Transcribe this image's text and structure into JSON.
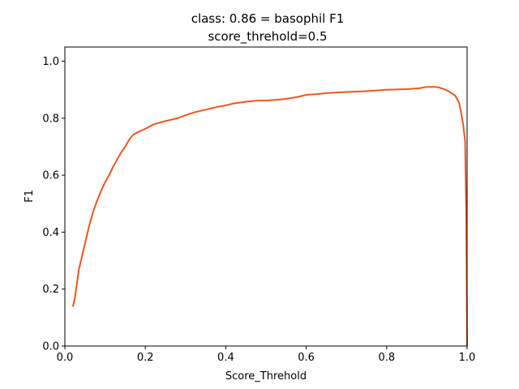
{
  "chart_data": {
    "type": "line",
    "title_line1": "class: 0.86 = basophil F1",
    "title_line2": "score_threhold=0.5",
    "xlabel": "Score_Threhold",
    "ylabel": "F1",
    "xlim": [
      0.0,
      1.0
    ],
    "ylim": [
      0.0,
      1.05
    ],
    "xticks": [
      0.0,
      0.2,
      0.4,
      0.6,
      0.8,
      1.0
    ],
    "xtick_labels": [
      "0.0",
      "0.2",
      "0.4",
      "0.6",
      "0.8",
      "1.0"
    ],
    "yticks": [
      0.0,
      0.2,
      0.4,
      0.6,
      0.8,
      1.0
    ],
    "ytick_labels": [
      "0.0",
      "0.2",
      "0.4",
      "0.6",
      "0.8",
      "1.0"
    ],
    "grid": false,
    "series": [
      {
        "color": "#f0541e",
        "x": [
          0.02,
          0.025,
          0.03,
          0.035,
          0.04,
          0.05,
          0.06,
          0.07,
          0.08,
          0.09,
          0.1,
          0.11,
          0.12,
          0.13,
          0.14,
          0.15,
          0.16,
          0.17,
          0.18,
          0.2,
          0.22,
          0.25,
          0.28,
          0.3,
          0.32,
          0.35,
          0.38,
          0.4,
          0.42,
          0.45,
          0.48,
          0.5,
          0.53,
          0.55,
          0.58,
          0.6,
          0.63,
          0.65,
          0.7,
          0.75,
          0.8,
          0.85,
          0.88,
          0.9,
          0.92,
          0.93,
          0.95,
          0.97,
          0.98,
          0.985,
          0.99,
          0.995,
          0.998,
          1.0
        ],
        "y": [
          0.138,
          0.17,
          0.22,
          0.27,
          0.3,
          0.36,
          0.42,
          0.47,
          0.51,
          0.545,
          0.575,
          0.6,
          0.63,
          0.655,
          0.68,
          0.7,
          0.725,
          0.742,
          0.75,
          0.763,
          0.778,
          0.79,
          0.8,
          0.81,
          0.82,
          0.83,
          0.84,
          0.845,
          0.852,
          0.858,
          0.862,
          0.862,
          0.865,
          0.868,
          0.875,
          0.882,
          0.885,
          0.888,
          0.892,
          0.895,
          0.9,
          0.902,
          0.905,
          0.91,
          0.91,
          0.908,
          0.898,
          0.88,
          0.855,
          0.82,
          0.78,
          0.72,
          0.45,
          0.0
        ]
      }
    ]
  }
}
